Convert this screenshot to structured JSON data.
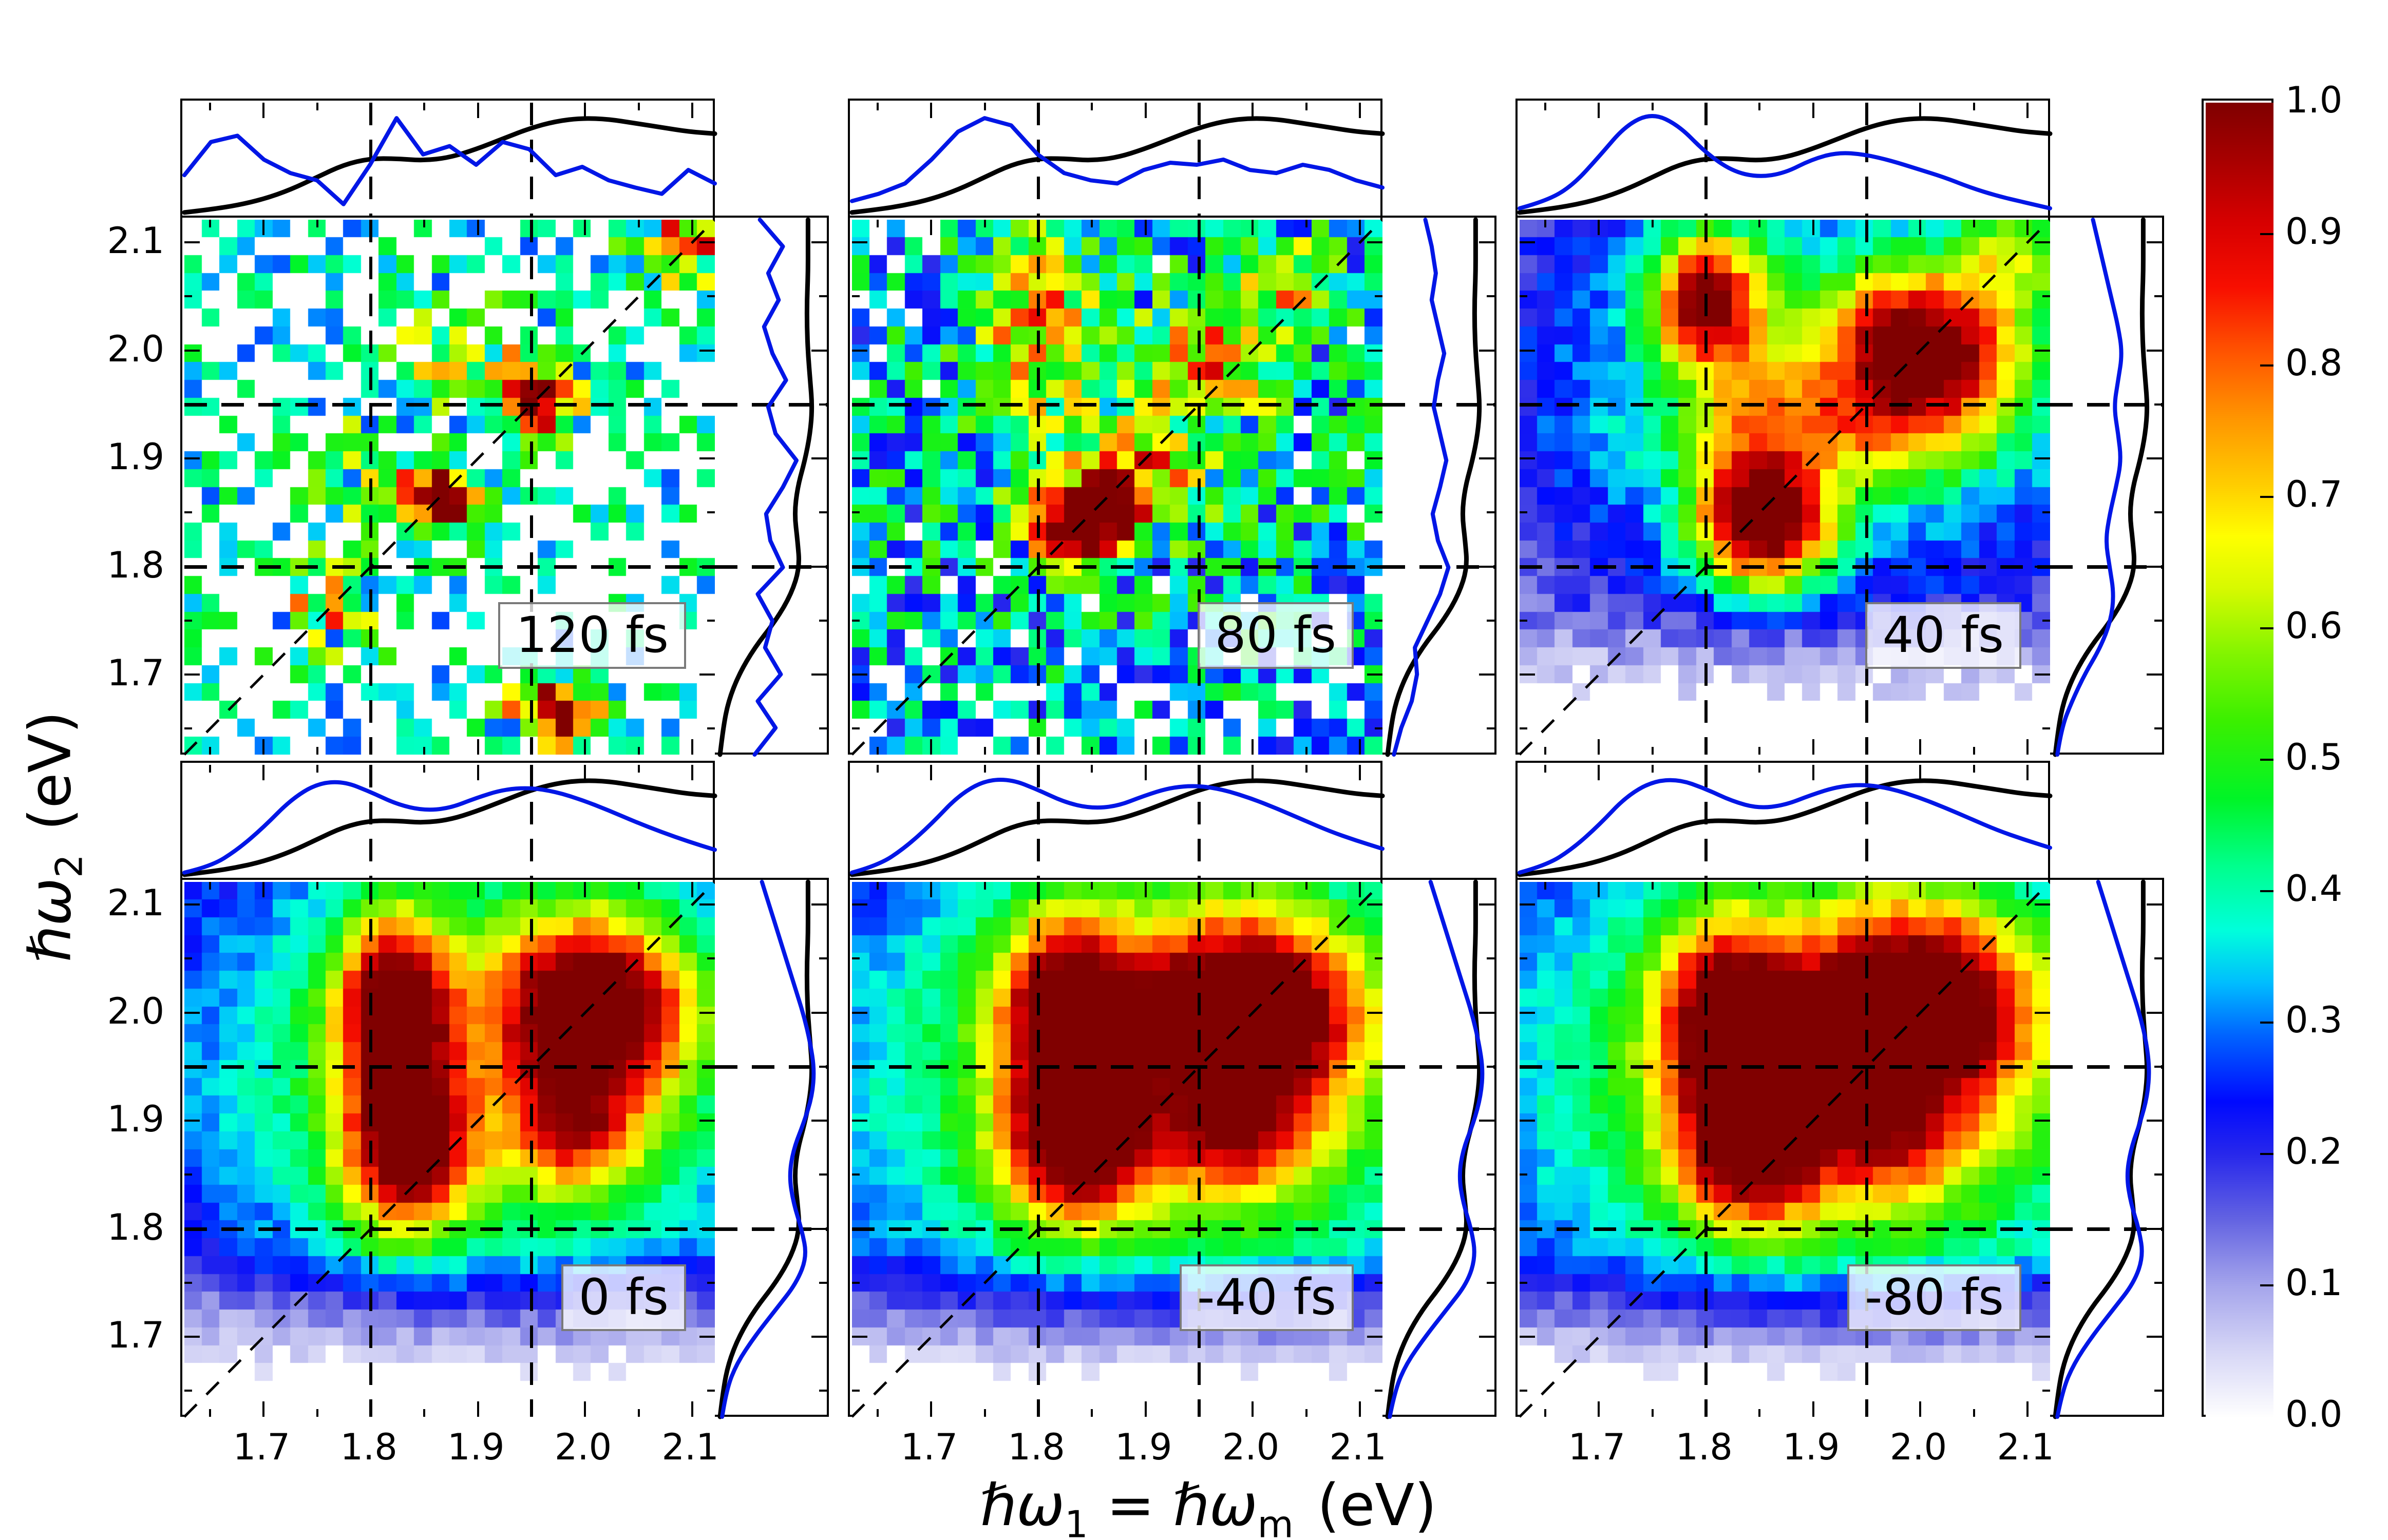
{
  "figure": {
    "x_label": {
      "sym1": "ℏω",
      "sub1": "1",
      "eq": " = ",
      "sym2": "ℏω",
      "sub2": "m",
      "unit": "(eV)"
    },
    "y_label": {
      "sym": "ℏω",
      "sub": "2",
      "unit": "(eV)"
    },
    "x_tick_labels": [
      "1.7",
      "1.8",
      "1.9",
      "2.0",
      "2.1"
    ],
    "y_tick_labels": [
      "2.1",
      "2.0",
      "1.9",
      "1.8",
      "1.7"
    ]
  },
  "colorbar": {
    "tick_labels": [
      "1.0",
      "0.9",
      "0.8",
      "0.7",
      "0.6",
      "0.5",
      "0.4",
      "0.3",
      "0.2",
      "0.1",
      "0.0"
    ]
  },
  "colors": {
    "line_blue": "#0016e6",
    "line_black": "#000000",
    "box_border": "#7a7a7a"
  },
  "chart_data": {
    "type": "heatmap",
    "title": "2D photon-echo spectra vs population time",
    "xlabel": "hbar omega_1 = hbar omega_m (eV)",
    "ylabel": "hbar omega_2 (eV)",
    "axis_range": [
      1.626,
      2.121
    ],
    "x_ticks": [
      1.7,
      1.8,
      1.9,
      2.0,
      2.1
    ],
    "y_ticks": [
      1.7,
      1.8,
      1.9,
      2.0,
      2.1
    ],
    "minor_ticks": [
      1.65,
      1.75,
      1.85,
      1.95,
      2.05
    ],
    "dashed_vertical": [
      1.8,
      1.95
    ],
    "dashed_horizontal": [
      1.95,
      1.8
    ],
    "diagonal": true,
    "grid_n": 30,
    "colorbar_range": [
      0.0,
      1.0
    ],
    "colormap_stops": [
      [
        0.0,
        255,
        255,
        255
      ],
      [
        0.05,
        214,
        214,
        246
      ],
      [
        0.1,
        165,
        165,
        236
      ],
      [
        0.15,
        100,
        100,
        226
      ],
      [
        0.2,
        40,
        40,
        236
      ],
      [
        0.24,
        0,
        10,
        255
      ],
      [
        0.29,
        0,
        100,
        255
      ],
      [
        0.33,
        0,
        190,
        255
      ],
      [
        0.37,
        0,
        255,
        220
      ],
      [
        0.42,
        0,
        255,
        140
      ],
      [
        0.47,
        0,
        245,
        40
      ],
      [
        0.53,
        60,
        240,
        0
      ],
      [
        0.58,
        130,
        245,
        0
      ],
      [
        0.63,
        215,
        250,
        0
      ],
      [
        0.67,
        255,
        255,
        0
      ],
      [
        0.71,
        255,
        205,
        0
      ],
      [
        0.76,
        255,
        150,
        0
      ],
      [
        0.81,
        255,
        85,
        0
      ],
      [
        0.86,
        248,
        15,
        0
      ],
      [
        0.91,
        215,
        0,
        0
      ],
      [
        0.96,
        165,
        0,
        0
      ],
      [
        1.0,
        128,
        0,
        0
      ]
    ],
    "top_black": [
      0.04,
      0.07,
      0.11,
      0.17,
      0.26,
      0.38,
      0.5,
      0.56,
      0.56,
      0.54,
      0.57,
      0.65,
      0.75,
      0.85,
      0.92,
      0.95,
      0.94,
      0.9,
      0.86,
      0.82,
      0.8
    ],
    "right_black": [
      0.02,
      0.05,
      0.1,
      0.2,
      0.35,
      0.55,
      0.7,
      0.78,
      0.76,
      0.73,
      0.76,
      0.83,
      0.88,
      0.9,
      0.88,
      0.86,
      0.85,
      0.85,
      0.86,
      0.86,
      0.86
    ],
    "panels": [
      {
        "label": "120 fs",
        "row": 0,
        "col": 0,
        "base": 0.18,
        "noise": 0.55,
        "cutoff": 0.27,
        "seed": 9,
        "env": null,
        "smooth_blue": false,
        "peaks": [
          [
            1.952,
            1.958,
            0.03,
            0.026,
            0.95
          ],
          [
            1.862,
            1.862,
            0.026,
            0.024,
            1.05
          ],
          [
            1.8,
            1.88,
            0.045,
            0.04,
            0.38
          ],
          [
            1.88,
            2.0,
            0.05,
            0.04,
            0.32
          ],
          [
            2.09,
            2.1,
            0.035,
            0.03,
            0.55
          ],
          [
            1.97,
            1.665,
            0.03,
            0.022,
            0.85
          ],
          [
            1.76,
            1.76,
            0.04,
            0.035,
            0.4
          ]
        ],
        "top_blue": [
          0.4,
          0.72,
          0.78,
          0.55,
          0.42,
          0.35,
          0.12,
          0.5,
          0.95,
          0.6,
          0.68,
          0.5,
          0.72,
          0.65,
          0.4,
          0.48,
          0.35,
          0.28,
          0.22,
          0.45,
          0.32
        ],
        "right_blue": [
          0.35,
          0.55,
          0.38,
          0.6,
          0.45,
          0.52,
          0.38,
          0.62,
          0.5,
          0.46,
          0.62,
          0.75,
          0.55,
          0.48,
          0.65,
          0.52,
          0.44,
          0.58,
          0.48,
          0.62,
          0.4
        ]
      },
      {
        "label": "80 fs",
        "row": 0,
        "col": 1,
        "base": 0.24,
        "noise": 0.4,
        "cutoff": 0.19,
        "seed": 17,
        "env": null,
        "smooth_blue": false,
        "peaks": [
          [
            1.845,
            1.843,
            0.035,
            0.028,
            1.08
          ],
          [
            1.885,
            1.885,
            0.048,
            0.034,
            0.55
          ],
          [
            1.8,
            2.03,
            0.048,
            0.075,
            0.45
          ],
          [
            1.955,
            1.985,
            0.05,
            0.045,
            0.48
          ],
          [
            2.03,
            2.06,
            0.05,
            0.04,
            0.38
          ],
          [
            1.87,
            1.92,
            0.2,
            0.16,
            0.16
          ]
        ],
        "top_blue": [
          0.15,
          0.22,
          0.32,
          0.55,
          0.82,
          0.95,
          0.88,
          0.6,
          0.42,
          0.35,
          0.32,
          0.45,
          0.52,
          0.5,
          0.55,
          0.45,
          0.42,
          0.5,
          0.45,
          0.35,
          0.28
        ],
        "right_blue": [
          0.08,
          0.15,
          0.25,
          0.3,
          0.28,
          0.4,
          0.52,
          0.6,
          0.5,
          0.45,
          0.52,
          0.58,
          0.52,
          0.46,
          0.5,
          0.56,
          0.5,
          0.44,
          0.48,
          0.44,
          0.38
        ]
      },
      {
        "label": "40 fs",
        "row": 0,
        "col": 2,
        "base": 0.1,
        "noise": 0.1,
        "cutoff": 0.05,
        "seed": 23,
        "env": [
          1.65,
          1.77
        ],
        "smooth_blue": true,
        "peaks": [
          [
            1.8,
            2.045,
            0.042,
            0.05,
            0.9
          ],
          [
            2.0,
            2.0,
            0.075,
            0.06,
            0.98
          ],
          [
            1.855,
            1.845,
            0.05,
            0.048,
            1.05
          ],
          [
            1.93,
            1.93,
            0.12,
            0.05,
            0.55
          ],
          [
            1.9,
            1.97,
            0.2,
            0.15,
            0.33
          ],
          [
            2.085,
            2.085,
            0.05,
            0.045,
            0.5
          ],
          [
            1.84,
            1.95,
            0.045,
            0.1,
            0.45
          ]
        ],
        "top_blue": [
          0.08,
          0.15,
          0.3,
          0.58,
          0.88,
          1.0,
          0.88,
          0.62,
          0.44,
          0.38,
          0.42,
          0.55,
          0.62,
          0.6,
          0.54,
          0.46,
          0.38,
          0.28,
          0.2,
          0.14,
          0.08
        ],
        "right_blue": [
          0.04,
          0.08,
          0.18,
          0.3,
          0.45,
          0.55,
          0.58,
          0.54,
          0.5,
          0.54,
          0.6,
          0.65,
          0.62,
          0.58,
          0.62,
          0.66,
          0.62,
          0.56,
          0.5,
          0.44,
          0.38
        ]
      },
      {
        "label": "0 fs",
        "row": 1,
        "col": 0,
        "base": 0.12,
        "noise": 0.08,
        "cutoff": 0.04,
        "seed": 37,
        "env": [
          1.655,
          1.78
        ],
        "smooth_blue": true,
        "peaks": [
          [
            1.825,
            2.0,
            0.045,
            0.07,
            1.02
          ],
          [
            1.835,
            1.88,
            0.05,
            0.065,
            0.98
          ],
          [
            2.005,
            2.0,
            0.075,
            0.07,
            1.02
          ],
          [
            1.99,
            1.895,
            0.055,
            0.05,
            0.7
          ],
          [
            1.915,
            1.95,
            0.2,
            0.16,
            0.48
          ]
        ],
        "top_blue": [
          0.06,
          0.12,
          0.28,
          0.5,
          0.76,
          0.92,
          0.94,
          0.84,
          0.72,
          0.66,
          0.68,
          0.78,
          0.86,
          0.88,
          0.84,
          0.76,
          0.66,
          0.55,
          0.45,
          0.36,
          0.28
        ],
        "right_blue": [
          0.04,
          0.08,
          0.18,
          0.35,
          0.55,
          0.75,
          0.85,
          0.8,
          0.72,
          0.68,
          0.72,
          0.82,
          0.9,
          0.92,
          0.88,
          0.82,
          0.74,
          0.66,
          0.58,
          0.5,
          0.42
        ]
      },
      {
        "label": "-40 fs",
        "row": 1,
        "col": 1,
        "base": 0.14,
        "noise": 0.08,
        "cutoff": 0.04,
        "seed": 47,
        "env": [
          1.655,
          1.78
        ],
        "smooth_blue": true,
        "peaks": [
          [
            1.83,
            1.99,
            0.052,
            0.078,
            1.04
          ],
          [
            1.84,
            1.88,
            0.058,
            0.058,
            0.96
          ],
          [
            2.0,
            1.995,
            0.082,
            0.075,
            1.04
          ],
          [
            1.91,
            1.99,
            0.07,
            0.06,
            0.58
          ],
          [
            1.985,
            1.89,
            0.062,
            0.05,
            0.7
          ],
          [
            1.92,
            1.945,
            0.21,
            0.165,
            0.52
          ]
        ],
        "top_blue": [
          0.06,
          0.13,
          0.3,
          0.53,
          0.8,
          0.95,
          0.96,
          0.86,
          0.74,
          0.68,
          0.7,
          0.8,
          0.88,
          0.9,
          0.86,
          0.78,
          0.68,
          0.57,
          0.46,
          0.37,
          0.29
        ],
        "right_blue": [
          0.04,
          0.09,
          0.2,
          0.38,
          0.58,
          0.78,
          0.86,
          0.82,
          0.74,
          0.7,
          0.74,
          0.84,
          0.91,
          0.93,
          0.89,
          0.83,
          0.75,
          0.67,
          0.59,
          0.51,
          0.43
        ]
      },
      {
        "label": "-80 fs",
        "row": 1,
        "col": 2,
        "base": 0.14,
        "noise": 0.08,
        "cutoff": 0.04,
        "seed": 57,
        "env": [
          1.655,
          1.78
        ],
        "smooth_blue": true,
        "peaks": [
          [
            1.822,
            1.985,
            0.052,
            0.076,
            1.02
          ],
          [
            1.845,
            1.875,
            0.058,
            0.056,
            0.95
          ],
          [
            2.0,
            2.0,
            0.082,
            0.076,
            1.04
          ],
          [
            1.912,
            1.995,
            0.07,
            0.06,
            0.62
          ],
          [
            1.965,
            1.885,
            0.068,
            0.05,
            0.65
          ],
          [
            1.92,
            1.945,
            0.21,
            0.165,
            0.54
          ]
        ],
        "top_blue": [
          0.06,
          0.13,
          0.29,
          0.52,
          0.79,
          0.94,
          0.96,
          0.87,
          0.75,
          0.68,
          0.71,
          0.81,
          0.89,
          0.91,
          0.87,
          0.79,
          0.69,
          0.58,
          0.47,
          0.38,
          0.3
        ],
        "right_blue": [
          0.04,
          0.09,
          0.2,
          0.37,
          0.57,
          0.77,
          0.86,
          0.82,
          0.74,
          0.7,
          0.74,
          0.83,
          0.9,
          0.92,
          0.89,
          0.83,
          0.75,
          0.67,
          0.59,
          0.51,
          0.43
        ]
      }
    ]
  }
}
